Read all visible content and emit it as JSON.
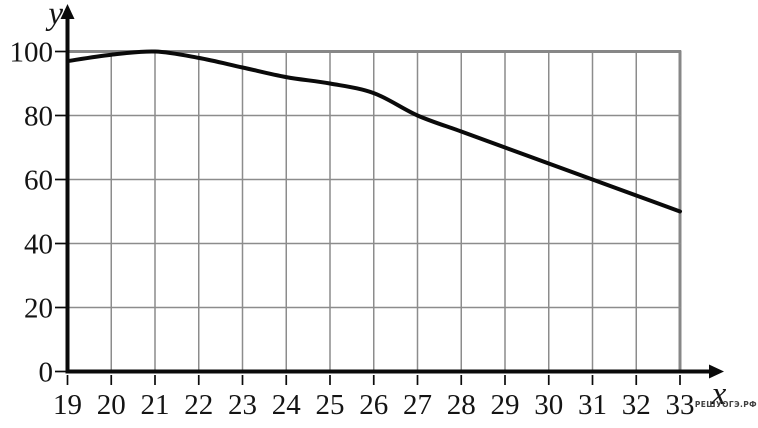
{
  "watermark": "РЕШУОГЭ.РФ",
  "colors": {
    "background": "#ffffff",
    "grid": "#8c8c8c",
    "grid_border": "#878787",
    "axis": "#0a0a0a",
    "curve": "#0a0a0a",
    "text": "#141414",
    "watermark": "#3f3f3f"
  },
  "chart_data": {
    "type": "line",
    "x": [
      19,
      20,
      21,
      22,
      23,
      24,
      25,
      26,
      27,
      28,
      29,
      30,
      31,
      32,
      33
    ],
    "y": [
      97,
      99,
      100,
      98,
      95,
      92,
      90,
      87,
      80,
      75,
      70,
      65,
      60,
      55,
      50
    ],
    "x_ticks": [
      "19",
      "20",
      "21",
      "22",
      "23",
      "24",
      "25",
      "26",
      "27",
      "28",
      "29",
      "30",
      "31",
      "32",
      "33"
    ],
    "y_ticks": [
      "0",
      "20",
      "40",
      "60",
      "80",
      "100"
    ],
    "xlim": [
      19,
      33
    ],
    "ylim": [
      0,
      100
    ],
    "xlabel": "x",
    "ylabel": "y",
    "grid": true,
    "legend": "none",
    "title": ""
  }
}
